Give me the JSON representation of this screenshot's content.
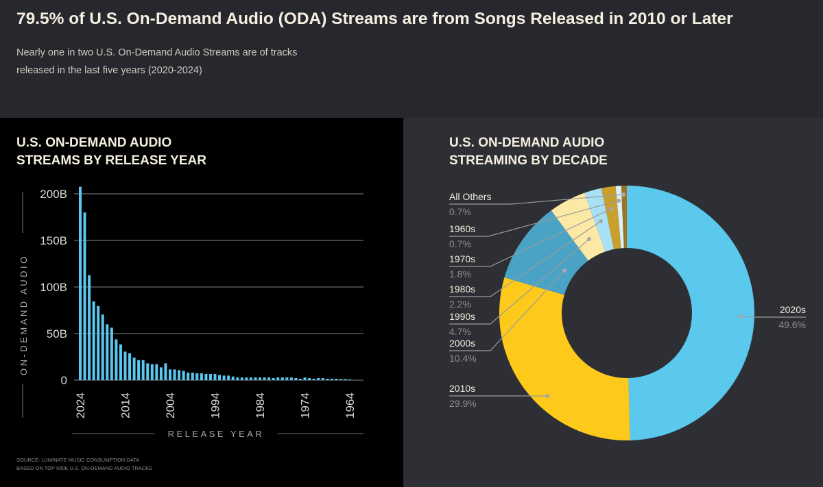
{
  "header": {
    "title": "79.5% of U.S. On-Demand Audio (ODA) Streams are from Songs Released in 2010 or Later",
    "subtitle_line1": "Nearly one in two U.S. On-Demand Audio Streams are of tracks",
    "subtitle_line2": "released in the last five years (2020-2024)"
  },
  "source": {
    "line1": "SOURCE: LUMINATE MUSIC CONSUMPTION DATA",
    "line2": "BASED ON TOP 500K U.S. ON-DEMAND AUDIO TRACKS"
  },
  "colors": {
    "bar": "#5ac8f0",
    "grid": "#6a6a6a"
  },
  "chart_data": [
    {
      "type": "bar",
      "title_line1": "U.S. ON-DEMAND AUDIO",
      "title_line2": "STREAMS BY RELEASE YEAR",
      "xlabel": "RELEASE YEAR",
      "ylabel": "ON-DEMAND AUDIO",
      "ylim": [
        0,
        200
      ],
      "unit": "B",
      "yticks": [
        "0",
        "50B",
        "100B",
        "150B",
        "200B"
      ],
      "xticks": [
        "2024",
        "2014",
        "2004",
        "1994",
        "1984",
        "1974",
        "1964"
      ],
      "categories": [
        2024,
        2023,
        2022,
        2021,
        2020,
        2019,
        2018,
        2017,
        2016,
        2015,
        2014,
        2013,
        2012,
        2011,
        2010,
        2009,
        2008,
        2007,
        2006,
        2005,
        2004,
        2003,
        2002,
        2001,
        2000,
        1999,
        1998,
        1997,
        1996,
        1995,
        1994,
        1993,
        1992,
        1991,
        1990,
        1989,
        1988,
        1987,
        1986,
        1985,
        1984,
        1983,
        1982,
        1981,
        1980,
        1979,
        1978,
        1977,
        1976,
        1975,
        1974,
        1973,
        1972,
        1971,
        1970,
        1969,
        1968,
        1967,
        1966,
        1965,
        1964
      ],
      "values": [
        207.6,
        180,
        112.6,
        84.5,
        79.6,
        70.5,
        60,
        56.3,
        43.8,
        38.4,
        30.6,
        28.9,
        24.2,
        21.5,
        21.5,
        18.1,
        17.1,
        17.1,
        13.7,
        18.1,
        11.5,
        11.5,
        10.8,
        10,
        8.1,
        8.1,
        7.3,
        7.3,
        6.6,
        6.6,
        6.6,
        5.6,
        4.9,
        4.9,
        3.9,
        2.9,
        2.9,
        2.9,
        2.9,
        2.9,
        2.9,
        2.9,
        2.9,
        2.2,
        2.9,
        2.9,
        2.9,
        2.9,
        2.2,
        1.5,
        2.9,
        2.2,
        1.5,
        2.2,
        2.2,
        1.5,
        1.5,
        1.5,
        1.2,
        1.2,
        0.8
      ]
    },
    {
      "type": "pie",
      "donut": true,
      "title_line1": "U.S. ON-DEMAND AUDIO",
      "title_line2": "STREAMING BY DECADE",
      "slices": [
        {
          "label": "2020s",
          "value": 49.6,
          "pct": "49.6%",
          "color": "#5bc8ee"
        },
        {
          "label": "2010s",
          "value": 29.9,
          "pct": "29.9%",
          "color": "#fdca1c"
        },
        {
          "label": "2000s",
          "value": 10.4,
          "pct": "10.4%",
          "color": "#4aa3c4"
        },
        {
          "label": "1990s",
          "value": 4.7,
          "pct": "4.7%",
          "color": "#fde9a6"
        },
        {
          "label": "1980s",
          "value": 2.2,
          "pct": "2.2%",
          "color": "#a9e0f5"
        },
        {
          "label": "1970s",
          "value": 1.8,
          "pct": "1.8%",
          "color": "#c9a02e"
        },
        {
          "label": "1960s",
          "value": 0.7,
          "pct": "0.7%",
          "color": "#d8f0fb"
        },
        {
          "label": "All Others",
          "value": 0.7,
          "pct": "0.7%",
          "color": "#9a7420"
        }
      ]
    }
  ]
}
